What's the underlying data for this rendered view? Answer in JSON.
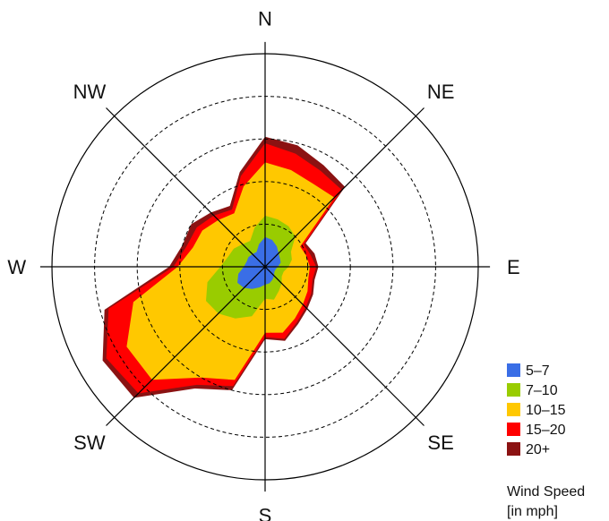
{
  "chart_data": {
    "type": "area",
    "subtype": "wind-rose",
    "directions": [
      "N",
      "NE",
      "E",
      "SE",
      "S",
      "SW",
      "W",
      "NW"
    ],
    "grid": {
      "rings": 5,
      "outer_ring_solid": true,
      "inner_rings_dashed": true,
      "axes": "8 spokes"
    },
    "radial_units": "relative (outer ring = 5)",
    "sector_angles_deg": [
      0,
      15,
      30,
      45,
      60,
      75,
      90,
      105,
      120,
      135,
      150,
      165,
      180,
      195,
      210,
      225,
      240,
      255,
      270,
      285,
      300,
      315,
      330,
      345
    ],
    "series": [
      {
        "name": "20+",
        "color": "#8b1212",
        "radii": [
          3.05,
          2.95,
          2.75,
          2.65,
          1.1,
          1.2,
          1.25,
          1.2,
          1.3,
          1.4,
          1.55,
          1.8,
          1.7,
          3.0,
          3.3,
          4.35,
          4.4,
          3.9,
          2.25,
          2.0,
          2.0,
          1.8,
          1.65,
          2.3
        ]
      },
      {
        "name": "15–20",
        "color": "#ff0000",
        "radii": [
          2.9,
          2.75,
          2.6,
          2.55,
          1.05,
          1.1,
          1.2,
          1.15,
          1.25,
          1.35,
          1.5,
          1.75,
          1.65,
          2.9,
          3.2,
          4.2,
          4.3,
          3.8,
          2.15,
          1.9,
          1.85,
          1.7,
          1.55,
          2.2
        ]
      },
      {
        "name": "10–15",
        "color": "#ffc800",
        "radii": [
          2.45,
          2.35,
          2.25,
          2.3,
          0.95,
          1.0,
          1.05,
          1.05,
          1.15,
          1.25,
          1.4,
          1.6,
          1.55,
          2.75,
          3.0,
          3.75,
          3.75,
          3.2,
          2.05,
          1.75,
          1.7,
          1.55,
          1.45,
          1.95
        ]
      },
      {
        "name": "7–10",
        "color": "#99cc00",
        "radii": [
          1.2,
          1.15,
          1.1,
          1.0,
          0.7,
          0.65,
          0.55,
          0.45,
          0.45,
          0.55,
          0.65,
          0.8,
          0.75,
          1.2,
          1.4,
          1.55,
          1.6,
          1.4,
          1.05,
          0.9,
          0.85,
          0.75,
          0.7,
          0.95
        ]
      },
      {
        "name": "5–7",
        "color": "#3a6ee6",
        "radii": [
          0.7,
          0.65,
          0.55,
          0.45,
          0.4,
          0.38,
          0.3,
          0.25,
          0.25,
          0.3,
          0.35,
          0.4,
          0.42,
          0.5,
          0.6,
          0.7,
          0.75,
          0.65,
          0.5,
          0.45,
          0.45,
          0.42,
          0.4,
          0.55
        ]
      }
    ],
    "legend": {
      "placement": "bottom-right",
      "title": "Wind Speed\n[in mph]",
      "entries": [
        {
          "label": "5–7",
          "color": "#3a6ee6"
        },
        {
          "label": "7–10",
          "color": "#99cc00"
        },
        {
          "label": "10–15",
          "color": "#ffc800"
        },
        {
          "label": "15–20",
          "color": "#ff0000"
        },
        {
          "label": "20+",
          "color": "#8b1212"
        }
      ]
    }
  },
  "legend_title_line1": "Wind Speed",
  "legend_title_line2": "[in mph]"
}
